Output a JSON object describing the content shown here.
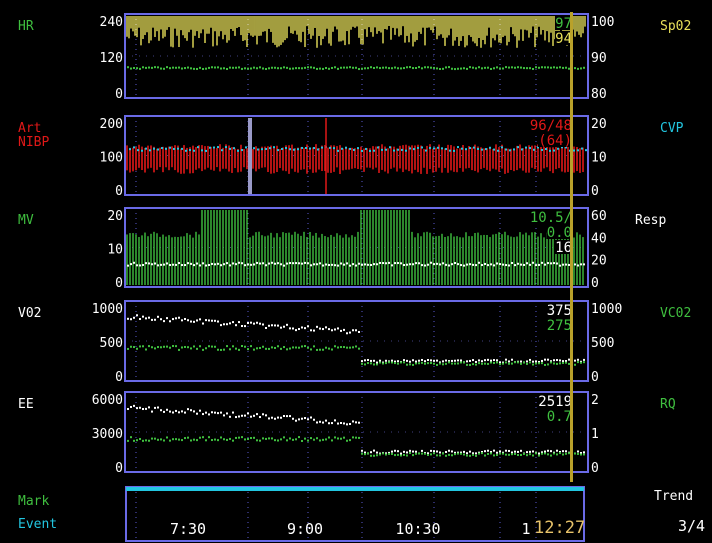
{
  "colors": {
    "background": "#000000",
    "frame": "#6a6ae6",
    "yellow": "#e8e05a",
    "green": "#3fbf3f",
    "red": "#e01818",
    "cyan": "#22c6e0",
    "white": "#ffffff",
    "cursor": "#b9a12a"
  },
  "panels": [
    {
      "id": "hr",
      "left_label": "HR",
      "left_label_color": "#3fbf3f",
      "left_label2": "",
      "left_label2_color": "#e01818",
      "left_ticks": [
        "240",
        "120",
        "0"
      ],
      "right_label": "Sp02",
      "right_label_color": "#e8e05a",
      "right_ticks": [
        "100",
        "90",
        "80"
      ],
      "readouts": [
        {
          "text": "97",
          "color": "#3fbf3f"
        },
        {
          "text": "94",
          "color": "#e8e05a"
        }
      ]
    },
    {
      "id": "art",
      "left_label": "Art",
      "left_label_color": "#e01818",
      "left_label2": "NIBP",
      "left_label2_color": "#e01818",
      "left_ticks": [
        "200",
        "100",
        "0"
      ],
      "right_label": "CVP",
      "right_label_color": "#22c6e0",
      "right_ticks": [
        "20",
        "10",
        "0"
      ],
      "readouts": [
        {
          "text": "96/48",
          "color": "#e01818"
        },
        {
          "text": "(64)",
          "color": "#e01818"
        }
      ]
    },
    {
      "id": "mv",
      "left_label": "MV",
      "left_label_color": "#3fbf3f",
      "left_label2": "",
      "left_label2_color": "#3fbf3f",
      "left_ticks": [
        "20",
        "10",
        "0"
      ],
      "right_label": "Resp",
      "right_label_color": "#ffffff",
      "right_ticks": [
        "60",
        "40",
        "20",
        "0"
      ],
      "readouts": [
        {
          "text": "10.5/",
          "color": "#3fbf3f"
        },
        {
          "text": "0.0",
          "color": "#3fbf3f"
        },
        {
          "text": "16",
          "color": "#ffffff"
        }
      ]
    },
    {
      "id": "vo2",
      "left_label": "V02",
      "left_label_color": "#ffffff",
      "left_label2": "",
      "left_label2_color": "#ffffff",
      "left_ticks": [
        "1000",
        "500",
        "0"
      ],
      "right_label": "VC02",
      "right_label_color": "#3fbf3f",
      "right_ticks": [
        "1000",
        "500",
        "0"
      ],
      "readouts": [
        {
          "text": "375",
          "color": "#ffffff"
        },
        {
          "text": "275",
          "color": "#3fbf3f"
        }
      ]
    },
    {
      "id": "ee",
      "left_label": "EE",
      "left_label_color": "#ffffff",
      "left_label2": "",
      "left_label2_color": "#ffffff",
      "left_ticks": [
        "6000",
        "3000",
        "0"
      ],
      "right_label": "RQ",
      "right_label_color": "#3fbf3f",
      "right_ticks": [
        "2",
        "1",
        "0"
      ],
      "readouts": [
        {
          "text": "2519",
          "color": "#ffffff"
        },
        {
          "text": "0.7",
          "color": "#3fbf3f"
        }
      ]
    }
  ],
  "event_bar": {
    "mark_label": "Mark",
    "event_label": "Event",
    "time_labels": [
      "7:30",
      "9:00",
      "10:30",
      "1"
    ],
    "trend_label": "Trend",
    "page_indicator": "3/4",
    "clock": "12:27"
  }
}
